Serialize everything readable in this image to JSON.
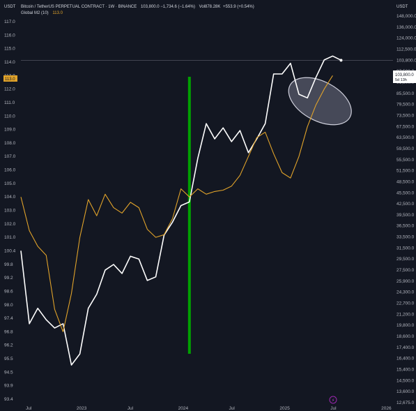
{
  "header": {
    "left_unit": "USDT",
    "right_unit": "USDT",
    "symbol_line": "Bitcoin / TetherUS PERPETUAL CONTRACT · 1W · BINANCE",
    "ohlc_text": "103,800.0  −1,734.6 (−1.64%)",
    "volume_text": "Vol878.28K",
    "volume_change": "+553.9 (+0.54%)",
    "m2_label": "Global M2 (10)",
    "m2_value": "113.0"
  },
  "price_tag": {
    "value": "103,800.0",
    "countdown": "5d 13h"
  },
  "m2_tag": {
    "value": "113.0"
  },
  "footer": {
    "badge_symbol": "⚡"
  },
  "colors": {
    "background": "#131722",
    "btc_line": "#ffffff",
    "m2_line": "#e1a32a",
    "marker": "#00a000",
    "axis_text": "#b2b5be"
  },
  "chart_data": {
    "type": "line",
    "title": "",
    "xlabel": "",
    "ylabel": "",
    "x_tick_labels": [
      "Jul",
      "2023",
      "Jul",
      "2024",
      "Jul",
      "2025",
      "Jul",
      "2026"
    ],
    "x_range": [
      "2022-05",
      "2026-01"
    ],
    "left_axis": {
      "unit": "USDT",
      "ticks": [
        "117.0",
        "116.0",
        "115.0",
        "114.0",
        "113.0",
        "112.0",
        "111.0",
        "110.0",
        "109.0",
        "108.0",
        "107.0",
        "106.0",
        "105.0",
        "104.0",
        "103.0",
        "102.0",
        "101.0",
        "100.4",
        "99.8",
        "99.2",
        "98.6",
        "98.0",
        "97.4",
        "96.8",
        "96.2",
        "95.5",
        "94.5",
        "93.9",
        "93.4"
      ]
    },
    "right_axis": {
      "unit": "USDT",
      "scale": "log",
      "ticks": [
        "148,000.0",
        "136,000.0",
        "124,000.0",
        "112,500.0",
        "103,800.0",
        "97,500.0",
        "91,500.0",
        "85,500.0",
        "79,500.0",
        "73,500.0",
        "67,500.0",
        "63,500.0",
        "59,500.0",
        "55,500.0",
        "51,500.0",
        "48,500.0",
        "45,500.0",
        "42,500.0",
        "39,500.0",
        "36,500.0",
        "33,500.0",
        "31,500.0",
        "29,500.0",
        "27,500.0",
        "25,900.0",
        "24,300.0",
        "22,700.0",
        "21,200.0",
        "19,800.0",
        "18,600.0",
        "17,400.0",
        "16,400.0",
        "15,400.0",
        "14,500.0",
        "13,600.0",
        "12,675.0"
      ]
    },
    "series": [
      {
        "name": "Bitcoin / TetherUS PERPETUAL CONTRACT",
        "axis": "right",
        "values": [
          [
            "2022-05",
            31000
          ],
          [
            "2022-06",
            20000
          ],
          [
            "2022-07",
            22000
          ],
          [
            "2022-08",
            20500
          ],
          [
            "2022-09",
            19500
          ],
          [
            "2022-10",
            20000
          ],
          [
            "2022-11",
            15800
          ],
          [
            "2022-12",
            16800
          ],
          [
            "2023-01",
            22000
          ],
          [
            "2023-02",
            24000
          ],
          [
            "2023-03",
            27500
          ],
          [
            "2023-04",
            28500
          ],
          [
            "2023-05",
            27000
          ],
          [
            "2023-06",
            30000
          ],
          [
            "2023-07",
            29500
          ],
          [
            "2023-08",
            26000
          ],
          [
            "2023-09",
            26500
          ],
          [
            "2023-10",
            34000
          ],
          [
            "2023-11",
            37500
          ],
          [
            "2023-12",
            42000
          ],
          [
            "2024-01",
            43000
          ],
          [
            "2024-02",
            56000
          ],
          [
            "2024-03",
            69000
          ],
          [
            "2024-04",
            63000
          ],
          [
            "2024-05",
            67000
          ],
          [
            "2024-06",
            62000
          ],
          [
            "2024-07",
            66000
          ],
          [
            "2024-08",
            58000
          ],
          [
            "2024-09",
            63000
          ],
          [
            "2024-10",
            69000
          ],
          [
            "2024-11",
            96000
          ],
          [
            "2024-12",
            96000
          ],
          [
            "2025-01",
            102000
          ],
          [
            "2025-02",
            85000
          ],
          [
            "2025-03",
            83000
          ],
          [
            "2025-04",
            94000
          ],
          [
            "2025-05",
            104000
          ],
          [
            "2025-06",
            107000
          ],
          [
            "2025-07",
            103800
          ]
        ]
      },
      {
        "name": "Global M2 (10)",
        "axis": "left",
        "values": [
          [
            "2022-05",
            104.0
          ],
          [
            "2022-06",
            101.5
          ],
          [
            "2022-07",
            100.6
          ],
          [
            "2022-08",
            100.2
          ],
          [
            "2022-09",
            97.8
          ],
          [
            "2022-10",
            96.8
          ],
          [
            "2022-11",
            98.5
          ],
          [
            "2022-12",
            101.0
          ],
          [
            "2023-01",
            103.8
          ],
          [
            "2023-02",
            102.6
          ],
          [
            "2023-03",
            104.2
          ],
          [
            "2023-04",
            103.2
          ],
          [
            "2023-05",
            102.8
          ],
          [
            "2023-06",
            103.6
          ],
          [
            "2023-07",
            103.2
          ],
          [
            "2023-08",
            101.6
          ],
          [
            "2023-09",
            101.0
          ],
          [
            "2023-10",
            101.2
          ],
          [
            "2023-11",
            102.4
          ],
          [
            "2023-12",
            104.6
          ],
          [
            "2024-01",
            104.0
          ],
          [
            "2024-02",
            104.6
          ],
          [
            "2024-03",
            104.2
          ],
          [
            "2024-04",
            104.4
          ],
          [
            "2024-05",
            104.5
          ],
          [
            "2024-06",
            104.8
          ],
          [
            "2024-07",
            105.6
          ],
          [
            "2024-08",
            107.0
          ],
          [
            "2024-09",
            108.4
          ],
          [
            "2024-10",
            108.8
          ],
          [
            "2024-11",
            107.2
          ],
          [
            "2024-12",
            105.8
          ],
          [
            "2025-01",
            105.4
          ],
          [
            "2025-02",
            107.0
          ],
          [
            "2025-03",
            109.2
          ],
          [
            "2025-04",
            110.8
          ],
          [
            "2025-05",
            112.0
          ],
          [
            "2025-06",
            113.0
          ]
        ]
      }
    ],
    "annotations": [
      {
        "type": "vertical-bar",
        "x": "2024-01",
        "color": "#00a000"
      },
      {
        "type": "ellipse-highlight",
        "x_range": [
          "2025-03",
          "2025-06"
        ],
        "range_left_axis": [
          109.2,
          113.0
        ]
      },
      {
        "type": "horizontal-line",
        "axis": "right",
        "value": 103800
      }
    ],
    "grid": false,
    "legend": "top-left"
  }
}
